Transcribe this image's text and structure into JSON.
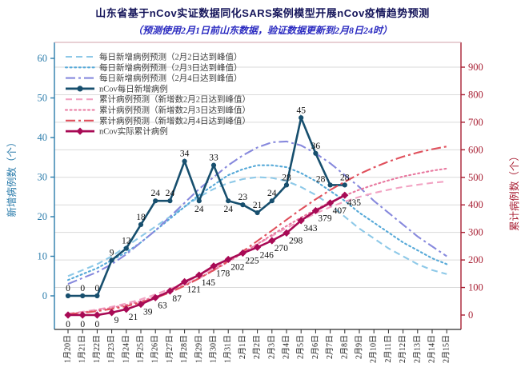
{
  "title": "山东省基于nCov实证数据同化SARS案例模型开展nCov疫情趋势预测",
  "subtitle": "（预测使用2月1日前山东数据，验证数据更新到2月8日24时）",
  "chart_data": {
    "type": "line",
    "x_labels": [
      "1月20日",
      "1月21日",
      "1月22日",
      "1月23日",
      "1月24日",
      "1月25日",
      "1月26日",
      "1月27日",
      "1月28日",
      "1月29日",
      "1月30日",
      "1月31日",
      "2月1日",
      "2月2日",
      "2月3日",
      "2月4日",
      "2月5日",
      "2月6日",
      "2月7日",
      "2月8日",
      "2月9日",
      "2月10日",
      "2月11日",
      "2月12日",
      "2月13日",
      "2月14日",
      "2月15日"
    ],
    "left_axis": {
      "label": "新增病例数（个）",
      "ticks": [
        0,
        10,
        20,
        30,
        40,
        50,
        60
      ],
      "range": [
        0,
        60
      ],
      "color": "#2b7cab"
    },
    "right_axis": {
      "label": "累计病例数（个）",
      "ticks": [
        0,
        100,
        200,
        300,
        400,
        500,
        600,
        700,
        800,
        900
      ],
      "range": [
        0,
        900
      ],
      "color": "#a81f33"
    },
    "grid": {
      "on": true,
      "color": "#dadada",
      "follows": "right_axis"
    },
    "legend_position": "upper-left",
    "series": [
      {
        "name": "每日新增病例预测（2月2日达到峰值）",
        "axis": "left",
        "style": "dashed",
        "color": "#8ec9e8",
        "marker": "none",
        "values": [
          5,
          6.5,
          8,
          10,
          12.5,
          15,
          17.5,
          20,
          22.5,
          25,
          27,
          28.5,
          29.5,
          30,
          29.8,
          29,
          27.5,
          25.5,
          23,
          20,
          17,
          14.5,
          12,
          10,
          8,
          6.5,
          5.5
        ]
      },
      {
        "name": "每日新增病例预测（2月3日达到峰值）",
        "axis": "left",
        "style": "dotted",
        "color": "#56a9d8",
        "marker": "none",
        "values": [
          4,
          5.5,
          7,
          9,
          11,
          13.5,
          16.5,
          19.5,
          22.5,
          25.5,
          28,
          30.5,
          32,
          33,
          33,
          32.5,
          31,
          29,
          26.5,
          24,
          21,
          18.5,
          16,
          13.5,
          11.5,
          9.5,
          8
        ]
      },
      {
        "name": "每日新增病例预测（2月4日达到峰值）",
        "axis": "left",
        "style": "dashdot",
        "color": "#8789dd",
        "marker": "none",
        "values": [
          3,
          4.5,
          6,
          8,
          10.5,
          13.5,
          16.5,
          20,
          23.5,
          27,
          30,
          33,
          35.5,
          37.5,
          38.8,
          39,
          38,
          36,
          33.5,
          30.5,
          27.5,
          24,
          21,
          18,
          15,
          12.5,
          10
        ]
      },
      {
        "name": "nCov每日新增病例",
        "axis": "left",
        "style": "solid",
        "color": "#174f6e",
        "marker": "circle",
        "labeled": true,
        "values": [
          0,
          0,
          0,
          9,
          12,
          18,
          24,
          24,
          34,
          24,
          33,
          24,
          23,
          21,
          24,
          28,
          45,
          36,
          28,
          28
        ]
      },
      {
        "name": "累计病例预测（新增数2月2日达到峰值）",
        "axis": "right",
        "style": "dashed",
        "color": "#f2a3c3",
        "marker": "none",
        "values": [
          5,
          12,
          20,
          30,
          42,
          57,
          75,
          95,
          117,
          142,
          169,
          198,
          227,
          257,
          287,
          316,
          343,
          369,
          392,
          412,
          429,
          443,
          455,
          465,
          473,
          480,
          485
        ]
      },
      {
        "name": "累计病例预测（新增数2月3日达到峰值）",
        "axis": "right",
        "style": "dotted",
        "color": "#e8789f",
        "marker": "none",
        "values": [
          4,
          10,
          17,
          26,
          37,
          50,
          67,
          86,
          109,
          134,
          162,
          193,
          225,
          258,
          291,
          323,
          354,
          383,
          410,
          434,
          455,
          473,
          489,
          503,
          514,
          524,
          532
        ]
      },
      {
        "name": "累计病例预测（新增数2月4日达到峰值）",
        "axis": "right",
        "style": "dashdot",
        "color": "#e0505c",
        "marker": "none",
        "values": [
          3,
          8,
          14,
          22,
          32,
          46,
          62,
          82,
          106,
          133,
          163,
          196,
          231,
          269,
          307,
          346,
          384,
          420,
          454,
          484,
          512,
          536,
          557,
          575,
          590,
          602,
          612
        ]
      },
      {
        "name": "nCov实际累计病例",
        "axis": "right",
        "style": "solid",
        "color": "#a80a55",
        "marker": "diamond",
        "labeled": true,
        "values": [
          0,
          0,
          0,
          9,
          21,
          39,
          63,
          87,
          121,
          145,
          178,
          202,
          225,
          246,
          270,
          298,
          343,
          379,
          407,
          435
        ]
      }
    ],
    "legend_text_color": "#3c3c3c",
    "spine_colors": {
      "left": "#2b7cab",
      "right": "#a81f33",
      "bottom": "#2a2a2a",
      "top": "#d0a0a8"
    },
    "point_label_color": "#111111"
  }
}
